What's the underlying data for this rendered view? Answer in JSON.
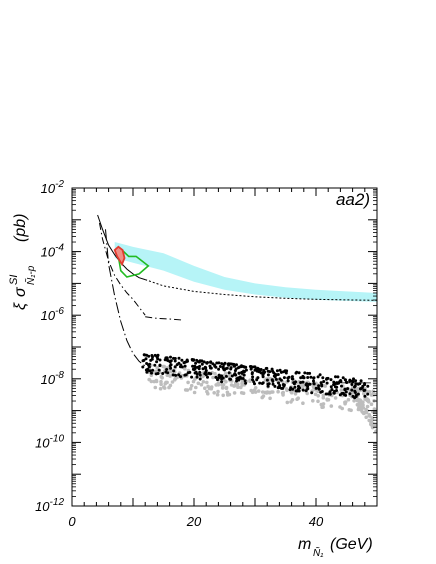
{
  "chart_data": {
    "type": "scatter",
    "panel_label": "aa2)",
    "xaxis": {
      "label_main": "m",
      "label_sub": "Ñ₁",
      "label_unit": "(GeV)",
      "range": [
        0,
        50
      ],
      "ticks": [
        0,
        20,
        40
      ],
      "tick_labels": [
        "0",
        "20",
        "40"
      ]
    },
    "yaxis": {
      "label_xi": "ξ",
      "label_sigma": "σ",
      "label_sup": "SI",
      "label_sub": "Ñ₁-p",
      "label_unit": "(pb)",
      "scale": "log",
      "range_exp": [
        -12,
        -2
      ],
      "ticks_exp": [
        -12,
        -10,
        -8,
        -6,
        -4,
        -2
      ],
      "tick_base": "10",
      "tick_exponents": [
        "-12",
        "-10",
        "-8",
        "-6",
        "-4",
        "-2"
      ]
    },
    "colors": {
      "band": "#b6f4f7",
      "black_points": "#000000",
      "grey_points": "#bdbdbd",
      "green_region": "#22bb22",
      "red_region": "#e23a2f",
      "red_fill": "#f08f86"
    },
    "band": {
      "x": [
        7,
        10,
        15,
        20,
        25,
        30,
        35,
        40,
        45,
        50
      ],
      "lower_exp": [
        -4.2,
        -4.35,
        -4.6,
        -4.95,
        -5.2,
        -5.35,
        -5.45,
        -5.52,
        -5.55,
        -5.58
      ],
      "upper_exp": [
        -3.7,
        -3.85,
        -4.05,
        -4.45,
        -4.8,
        -5.0,
        -5.12,
        -5.2,
        -5.25,
        -5.3
      ]
    },
    "curves": [
      {
        "style": "solid",
        "x": [
          4.2,
          5,
          6,
          7,
          8,
          9,
          10,
          11,
          12
        ],
        "y_exp": [
          -2.85,
          -3.3,
          -3.8,
          -4.1,
          -4.35,
          -4.55,
          -4.7,
          -4.82,
          -4.88
        ]
      },
      {
        "style": "dotted",
        "x": [
          12,
          15,
          20,
          25,
          30,
          35,
          40,
          45,
          50
        ],
        "y_exp": [
          -4.88,
          -5.08,
          -5.25,
          -5.35,
          -5.42,
          -5.47,
          -5.5,
          -5.52,
          -5.53
        ]
      },
      {
        "style": "dash-dot",
        "x": [
          4.5,
          5,
          6,
          7,
          8,
          9,
          10,
          11,
          12
        ],
        "y_exp": [
          -3.1,
          -3.6,
          -4.3,
          -4.75,
          -5.05,
          -5.3,
          -5.5,
          -5.75,
          -6.0
        ]
      },
      {
        "style": "dash-dot",
        "x": [
          12,
          14,
          16,
          18
        ],
        "y_exp": [
          -6.05,
          -6.1,
          -6.12,
          -6.15
        ]
      },
      {
        "style": "long-dash-dot",
        "x": [
          5.5,
          6,
          7,
          8,
          9,
          10,
          11,
          12
        ],
        "y_exp": [
          -3.3,
          -4.4,
          -5.4,
          -6.2,
          -6.8,
          -7.2,
          -7.45,
          -7.6
        ]
      },
      {
        "style": "solid-thin",
        "x": [
          44,
          49
        ],
        "y_exp": [
          -8.13,
          -8.13
        ]
      }
    ],
    "regions": {
      "green": {
        "x": [
          7.5,
          8.2,
          9.3,
          10.5,
          11.5,
          12.5,
          11.0,
          9.0,
          8.0
        ],
        "y_exp": [
          -4.05,
          -3.95,
          -4.15,
          -4.15,
          -4.3,
          -4.45,
          -4.7,
          -4.8,
          -4.6
        ]
      },
      "red": {
        "x": [
          7.0,
          7.6,
          8.3,
          8.6,
          8.2,
          7.4
        ],
        "y_exp": [
          -3.95,
          -3.85,
          -3.95,
          -4.2,
          -4.4,
          -4.15
        ]
      }
    },
    "black_scatter": {
      "x_range": [
        11.5,
        48.5
      ],
      "y_exp_upper_at_xmin": -7.2,
      "y_exp_upper_at_xmax": -8.05,
      "y_exp_spread": 0.6,
      "count": 420
    },
    "grey_scatter": {
      "x_range": [
        12.5,
        50
      ],
      "y_exp_upper_at_xmin": -7.55,
      "y_exp_upper_at_xmax": -8.35,
      "y_exp_spread": 0.75,
      "count": 330,
      "tail_x": [
        46,
        50
      ],
      "tail_y_exp": [
        -8.4,
        -9.6
      ]
    }
  }
}
